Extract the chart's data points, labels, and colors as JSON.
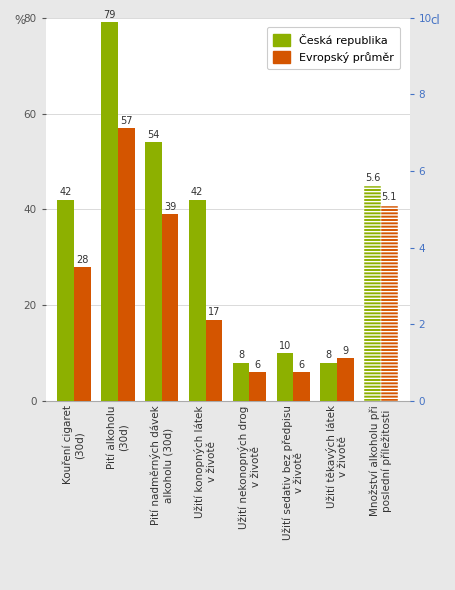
{
  "categories": [
    "Kouření cigaret\n(30d)",
    "Pití alkoholu\n(30d)",
    "Pití nadměrných dávek\nalkoholu (30d)",
    "Užití konopných látek\nv životě",
    "Užití nekonopných drog\nv životě",
    "Užití sedativ bez předpisu\nv životě",
    "Užití těkavých látek\nv životě",
    "Množství alkoholu při\nposlední příležitosti"
  ],
  "cz_values": [
    42,
    79,
    54,
    42,
    8,
    10,
    8,
    5.6
  ],
  "eu_values": [
    28,
    57,
    39,
    17,
    6,
    6,
    9,
    5.1
  ],
  "cz_color": "#8db000",
  "eu_color": "#d45500",
  "ylabel_left": "%",
  "ylabel_right": "cl",
  "ylim_left": [
    0,
    80
  ],
  "ylim_right": [
    0,
    10
  ],
  "bg_color": "#e8e8e8",
  "plot_bg": "#ffffff",
  "legend_cz": "Česká republika",
  "legend_eu": "Evropský průměr",
  "bar_width": 0.38,
  "label_fontsize": 7.0,
  "tick_fontsize": 7.5,
  "legend_fontsize": 8.0,
  "ytick_left": [
    0,
    20,
    40,
    60,
    80
  ],
  "ytick_right": [
    0,
    2,
    4,
    6,
    8,
    10
  ]
}
